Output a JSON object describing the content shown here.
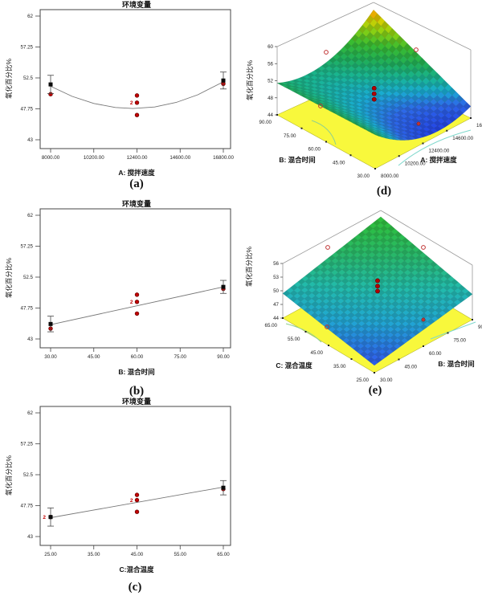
{
  "figure": {
    "background": "#ffffff"
  },
  "captions": {
    "a": "(a)",
    "b": "(b)",
    "c": "(c)",
    "d": "(d)",
    "e": "(e)"
  },
  "chart_data": [
    {
      "id": "a",
      "type": "scatter",
      "title": "环境变量",
      "xlabel": "A: 搅拌速度",
      "ylabel": "氧化百分比%",
      "xlim": [
        8000,
        16800
      ],
      "ylim": [
        43,
        62
      ],
      "x_tick_values": [
        8000,
        10200,
        12400,
        14600,
        16800
      ],
      "x_tick_labels": [
        "8000.00",
        "10200.00",
        "12400.00",
        "14600.00",
        "16800.00"
      ],
      "y_tick_values": [
        43,
        47.75,
        52.5,
        57.25,
        62
      ],
      "y_tick_labels": [
        "43",
        "47.75",
        "52.5",
        "57.25",
        "62"
      ],
      "design_points": [
        {
          "x": 8000,
          "y": 51.5,
          "err": 1.4
        },
        {
          "x": 16800,
          "y": 52.1,
          "err": 1.3
        }
      ],
      "replicate_points": [
        {
          "x": 8000,
          "y": 50.0
        },
        {
          "x": 12400,
          "y": 49.8
        },
        {
          "x": 12400,
          "y": 48.7,
          "label": "2"
        },
        {
          "x": 12400,
          "y": 46.8
        },
        {
          "x": 16800,
          "y": 51.6
        }
      ],
      "fit_line": [
        [
          8000,
          51.22
        ],
        [
          9100,
          49.66
        ],
        [
          10200,
          48.58
        ],
        [
          11300,
          47.96
        ],
        [
          12200,
          47.8
        ],
        [
          13300,
          48.03
        ],
        [
          14400,
          48.74
        ],
        [
          15500,
          49.91
        ],
        [
          16800,
          51.9
        ]
      ]
    },
    {
      "id": "b",
      "type": "scatter",
      "title": "环境变量",
      "xlabel": "B: 混合时间",
      "ylabel": "氧化百分比%",
      "xlim": [
        30,
        90
      ],
      "ylim": [
        43,
        62
      ],
      "x_tick_values": [
        30,
        45,
        60,
        75,
        90
      ],
      "x_tick_labels": [
        "30.00",
        "45.00",
        "60.00",
        "75.00",
        "90.00"
      ],
      "y_tick_values": [
        43,
        47.75,
        52.5,
        57.25,
        62
      ],
      "y_tick_labels": [
        "43",
        "47.75",
        "52.5",
        "57.25",
        "62"
      ],
      "design_points": [
        {
          "x": 30,
          "y": 45.3,
          "err": 1.2
        },
        {
          "x": 90,
          "y": 51.0,
          "err": 1.0
        }
      ],
      "replicate_points": [
        {
          "x": 30,
          "y": 44.6
        },
        {
          "x": 60,
          "y": 49.8
        },
        {
          "x": 60,
          "y": 48.7,
          "label": "2"
        },
        {
          "x": 60,
          "y": 46.9
        },
        {
          "x": 90,
          "y": 50.7
        }
      ],
      "fit_line": [
        [
          30,
          45.2
        ],
        [
          90,
          51.0
        ]
      ]
    },
    {
      "id": "c",
      "type": "scatter",
      "title": "环境变量",
      "xlabel": "C:混合温度",
      "ylabel": "氧化百分比%",
      "xlim": [
        25,
        65
      ],
      "ylim": [
        43,
        62
      ],
      "x_tick_values": [
        25,
        35,
        45,
        55,
        65
      ],
      "x_tick_labels": [
        "25.00",
        "35.00",
        "45.00",
        "55.00",
        "65.00"
      ],
      "y_tick_values": [
        43,
        47.75,
        52.5,
        57.25,
        62
      ],
      "y_tick_labels": [
        "43",
        "47.75",
        "52.5",
        "57.25",
        "62"
      ],
      "design_points": [
        {
          "x": 25,
          "y": 46.0,
          "err": 1.4,
          "label": "2"
        },
        {
          "x": 65,
          "y": 50.5,
          "err": 1.1
        }
      ],
      "replicate_points": [
        {
          "x": 25,
          "y": 46.0
        },
        {
          "x": 45,
          "y": 49.4
        },
        {
          "x": 45,
          "y": 48.6,
          "label": "2"
        },
        {
          "x": 45,
          "y": 46.8
        },
        {
          "x": 65,
          "y": 50.3
        }
      ],
      "fit_line": [
        [
          25,
          45.9
        ],
        [
          65,
          50.6
        ]
      ]
    },
    {
      "id": "d",
      "type": "surface3d",
      "zlabel": "氧化百分比%",
      "zlim": [
        44,
        60
      ],
      "z_tick_values": [
        44,
        48,
        52,
        56,
        60
      ],
      "z_tick_labels": [
        "44",
        "48",
        "52",
        "56",
        "60"
      ],
      "left_axis": {
        "label": "B: 混合时间",
        "tick_labels": [
          "30.00",
          "45.00",
          "60.00",
          "75.00",
          "90.00"
        ]
      },
      "right_axis": {
        "label": "A: 搅拌速度",
        "tick_labels": [
          "8000.00",
          "10200.00",
          "12400.00",
          "14600.00",
          "16800.00"
        ]
      },
      "model": {
        "c0": 48.2,
        "ca": 0.4,
        "caa": 3.9,
        "cb": 2.75,
        "cab": 3.0
      },
      "center_dots_z": [
        51.0,
        49.7,
        48.4
      ],
      "floor_color": "#f8f83c",
      "color_stops": [
        [
          44,
          "#1c2ed8"
        ],
        [
          47,
          "#2a62dc"
        ],
        [
          48.5,
          "#17a2c6"
        ],
        [
          50,
          "#17ab8a"
        ],
        [
          51.5,
          "#1ca556"
        ],
        [
          53.5,
          "#35b12d"
        ],
        [
          55.5,
          "#8cc70e"
        ],
        [
          57,
          "#cfc200"
        ],
        [
          58,
          "#e29000"
        ],
        [
          58.7,
          "#e05f00"
        ],
        [
          60,
          "#cc2200"
        ]
      ]
    },
    {
      "id": "e",
      "type": "surface3d",
      "zlabel": "氧化百分比%",
      "zlim": [
        44,
        56
      ],
      "z_tick_values": [
        44,
        47,
        50,
        53,
        56
      ],
      "z_tick_labels": [
        "44",
        "47",
        "50",
        "53",
        "56"
      ],
      "left_axis": {
        "label": "C: 混合温度",
        "tick_labels": [
          "25.00",
          "35.00",
          "45.00",
          "55.00",
          "65.00"
        ]
      },
      "right_axis": {
        "label": "B: 混合时间",
        "tick_labels": [
          "30.00",
          "45.00",
          "60.00",
          "75.00",
          "90.00"
        ]
      },
      "model": {
        "c0": 49.8,
        "ca": 2.3,
        "caa": 0,
        "cb": 2.2,
        "cab": 0.3
      },
      "center_dots_z": [
        52.4,
        51.2,
        50.1
      ],
      "floor_color": "#f8f83c",
      "color_stops": [
        [
          44,
          "#1c30d0"
        ],
        [
          46,
          "#2a5ede"
        ],
        [
          48,
          "#1e9cc8"
        ],
        [
          50,
          "#1fb0a2"
        ],
        [
          52,
          "#25ae66"
        ],
        [
          54,
          "#2ab33e"
        ],
        [
          56,
          "#2fb62a"
        ]
      ]
    }
  ],
  "style_colors": {
    "replicate_point": "#c00000",
    "replicate_point_edge": "#5c0000",
    "design_point": "#0a0a0a",
    "error_bar": "#444444",
    "fit_line": "#777777",
    "frame": "#444444"
  }
}
